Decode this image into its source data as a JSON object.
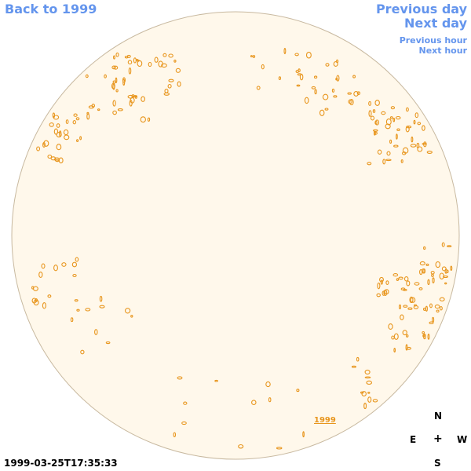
{
  "nav": {
    "back_label": "Back to 1999",
    "prev_day_label": "Previous day",
    "next_day_label": "Next day",
    "prev_hour_label": "Previous hour",
    "next_hour_label": "Next hour"
  },
  "compass": {
    "north": "N",
    "east": "E",
    "center": "+",
    "west": "W",
    "south": "S"
  },
  "timestamp": "1999-03-25T17:35:33",
  "year_label": "1999",
  "colors": {
    "disk_fill": "#fff8eb",
    "disk_stroke": "#c8b9a0",
    "contour": "#e8961e",
    "link": "#6495ed"
  }
}
